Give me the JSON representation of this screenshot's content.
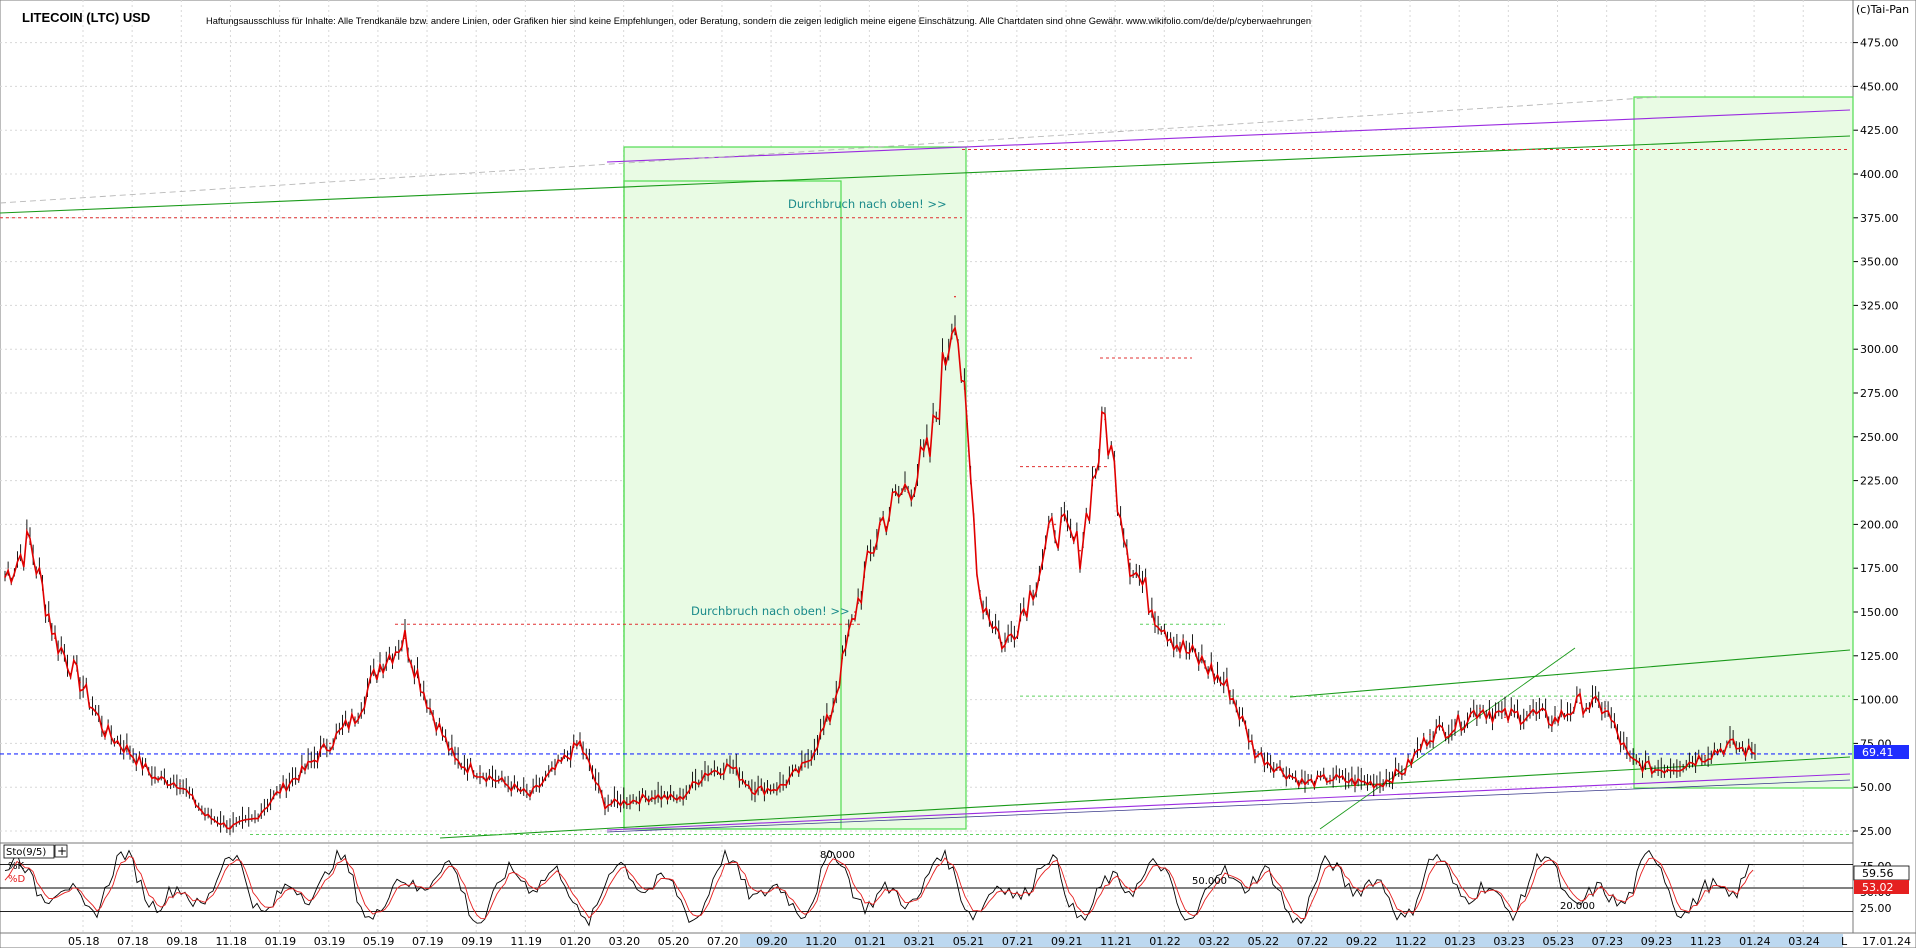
{
  "header": {
    "title": "LITECOIN (LTC) USD",
    "disclaimer": "Haftungsausschluss für Inhalte: Alle Trendkanäle bzw. andere Linien, oder Grafiken hier sind keine Empfehlungen, oder Beratung, sondern die zeigen lediglich meine eigene Einschätzung. Alle Chartdaten sind ohne Gewähr.  www.wikifolio.com/de/de/p/cyberwaehrungen",
    "copyright": "(c)Tai-Pan"
  },
  "annotations": {
    "breakout_1": "Durchbruch nach oben! >>",
    "breakout_2": "Durchbruch nach oben! >>"
  },
  "price_badge": {
    "value": "69.41",
    "color": "#1f2dff"
  },
  "indicator": {
    "name": "Sto(9/5)",
    "k_label": "%K",
    "d_label": "%D",
    "k_value": "59.56",
    "d_value": "53.02",
    "level_80": "80.000",
    "level_50": "50.000",
    "level_20": "20.000",
    "ticks": [
      "75.00",
      "50.00",
      "25.00"
    ]
  },
  "date_badge": "17.01.24",
  "corner_label": "L",
  "colors": {
    "price_line": "#e00000",
    "candles": "#000000",
    "trend_green": "#1a9a1a",
    "trend_purple": "#9a2be0",
    "box_fill": "#e9fbe4",
    "box_border": "#50dd50",
    "badge_blue": "#1f2dff",
    "badge_red": "#e52020"
  },
  "chart_data": {
    "type": "line",
    "title": "LITECOIN (LTC) USD",
    "ylim": [
      20,
      485
    ],
    "yticks": [
      25,
      50,
      75,
      100,
      125,
      150,
      175,
      200,
      225,
      250,
      275,
      300,
      325,
      350,
      375,
      400,
      425,
      450,
      475
    ],
    "ytick_labels": [
      "25.00",
      "50.00",
      "75.00",
      "100.00",
      "125.00",
      "150.00",
      "175.00",
      "200.00",
      "225.00",
      "250.00",
      "275.00",
      "300.00",
      "325.00",
      "350.00",
      "375.00",
      "400.00",
      "425.00",
      "450.00",
      "475.00"
    ],
    "xtick_labels": [
      "05.18",
      "07.18",
      "09.18",
      "11.18",
      "01.19",
      "03.19",
      "05.19",
      "07.19",
      "09.19",
      "11.19",
      "01.20",
      "03.20",
      "05.20",
      "07.20",
      "09.20",
      "11.20",
      "01.21",
      "03.21",
      "05.21",
      "07.21",
      "09.21",
      "11.21",
      "01.22",
      "03.22",
      "05.22",
      "07.22",
      "09.22",
      "11.22",
      "01.23",
      "03.23",
      "05.23",
      "07.23",
      "09.23",
      "11.23",
      "01.24",
      "03.24"
    ],
    "x": [
      "03.18",
      "04.18",
      "05.18",
      "06.18",
      "07.18",
      "08.18",
      "09.18",
      "10.18",
      "11.18",
      "12.18",
      "01.19",
      "02.19",
      "03.19",
      "04.19",
      "05.19",
      "06.19",
      "07.19",
      "08.19",
      "09.19",
      "10.19",
      "11.19",
      "12.19",
      "01.20",
      "02.20",
      "03.20",
      "04.20",
      "05.20",
      "06.20",
      "07.20",
      "08.20",
      "09.20",
      "10.20",
      "11.20",
      "12.20",
      "01.21",
      "02.21",
      "03.21",
      "04.21",
      "05.21",
      "06.21",
      "07.21",
      "08.21",
      "09.21",
      "10.21",
      "11.21",
      "12.21",
      "01.22",
      "02.22",
      "03.22",
      "04.22",
      "05.22",
      "06.22",
      "07.22",
      "08.22",
      "09.22",
      "10.22",
      "11.22",
      "12.22",
      "01.23",
      "02.23",
      "03.23",
      "04.23",
      "05.23",
      "06.23",
      "07.23",
      "08.23",
      "09.23",
      "10.23",
      "11.23",
      "12.23",
      "01.24"
    ],
    "series": [
      {
        "values": [
          170,
          190,
          135,
          110,
          82,
          70,
          55,
          52,
          34,
          27,
          32,
          48,
          60,
          75,
          90,
          120,
          135,
          95,
          65,
          58,
          52,
          45,
          60,
          75,
          40,
          42,
          45,
          43,
          58,
          62,
          48,
          50,
          62,
          90,
          150,
          200,
          220,
          240,
          330,
          160,
          130,
          160,
          200,
          185,
          260,
          180,
          150,
          130,
          120,
          105,
          70,
          60,
          52,
          55,
          53,
          52,
          60,
          80,
          85,
          95,
          90,
          92,
          88,
          98,
          95,
          65,
          60,
          62,
          68,
          74,
          69
        ]
      }
    ],
    "reference_levels": [
      375,
      143,
      233,
      295,
      414,
      102,
      23
    ]
  }
}
